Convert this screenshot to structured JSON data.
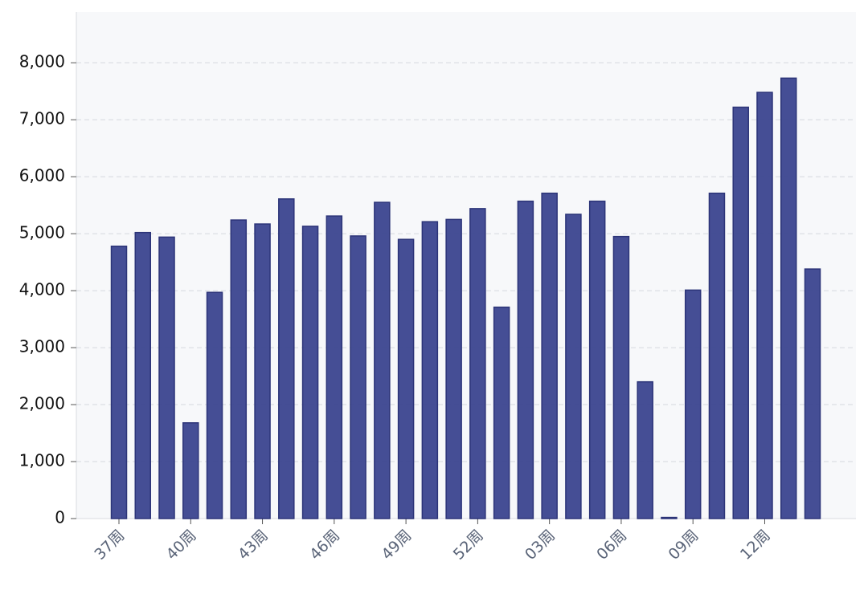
{
  "chart_data": {
    "type": "bar",
    "categories": [
      "37周",
      null,
      null,
      "40周",
      null,
      null,
      "43周",
      null,
      null,
      "46周",
      null,
      null,
      "49周",
      null,
      null,
      "52周",
      null,
      null,
      "03周",
      null,
      null,
      "06周",
      null,
      null,
      "09周",
      null,
      null,
      "12周",
      null,
      null
    ],
    "values": [
      4780,
      5020,
      4940,
      1680,
      3970,
      5240,
      5170,
      5610,
      5130,
      5310,
      4960,
      5550,
      4900,
      5210,
      5250,
      5440,
      3710,
      5570,
      5710,
      5340,
      5570,
      4950,
      2400,
      20,
      4010,
      5710,
      7220,
      7480,
      7730,
      4380
    ],
    "color": "#3b458f",
    "ylim": [
      0,
      8890
    ],
    "yticks": [
      0,
      {
        "value": 1000,
        "label": "1,000"
      },
      {
        "value": 2000,
        "label": "2,000"
      },
      {
        "value": 3000,
        "label": "3,000"
      },
      {
        "value": 4000,
        "label": "4,000"
      },
      {
        "value": 5000,
        "label": "5,000"
      },
      {
        "value": 6000,
        "label": "6,000"
      },
      {
        "value": 7000,
        "label": "7,000"
      },
      {
        "value": 8000,
        "label": "8,000"
      }
    ],
    "grid": true
  }
}
